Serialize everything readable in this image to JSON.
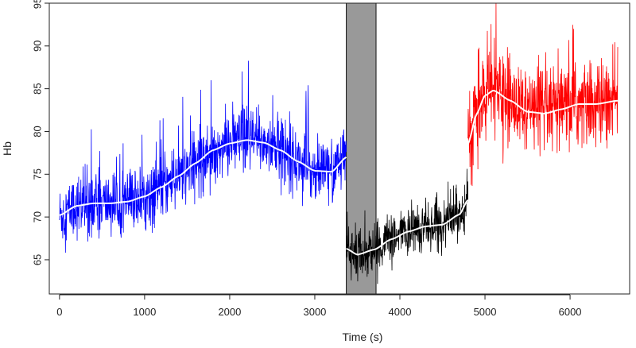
{
  "chart_data": {
    "type": "line",
    "title": "",
    "xlabel": "Time (s)",
    "ylabel": "Hb",
    "xlim": [
      -120,
      6700
    ],
    "ylim": [
      61,
      95
    ],
    "xticks": [
      0,
      1000,
      2000,
      3000,
      4000,
      5000,
      6000
    ],
    "yticks": [
      65,
      70,
      75,
      80,
      85,
      90,
      95
    ],
    "grid": false,
    "shaded_region": {
      "x": [
        3370,
        3720
      ],
      "color": "#999999"
    },
    "series": [
      {
        "color": "#0000ff",
        "x_range": [
          0,
          3370
        ],
        "trend": {
          "x": [
            0,
            200,
            400,
            600,
            800,
            1000,
            1200,
            1400,
            1600,
            1800,
            2000,
            2200,
            2400,
            2600,
            2800,
            3000,
            3200,
            3370
          ],
          "y": [
            70.2,
            71.3,
            71.6,
            71.6,
            71.8,
            72.4,
            73.5,
            74.8,
            76.3,
            77.8,
            78.6,
            79.0,
            78.7,
            77.8,
            76.5,
            75.4,
            75.3,
            77.0
          ]
        },
        "noise": {
          "base": 1.8,
          "spike": 6.0
        }
      },
      {
        "color": "#000000",
        "x_range": [
          3370,
          4800
        ],
        "trend": {
          "x": [
            3370,
            3500,
            3700,
            3900,
            4100,
            4300,
            4500,
            4700,
            4800
          ],
          "y": [
            66.3,
            65.6,
            66.2,
            67.4,
            68.3,
            68.9,
            69.1,
            70.3,
            72.0
          ]
        },
        "noise": {
          "base": 1.4,
          "spike": 3.0
        }
      },
      {
        "color": "#ff0000",
        "x_range": [
          4800,
          6560
        ],
        "trend": {
          "x": [
            4800,
            4900,
            5000,
            5100,
            5300,
            5500,
            5700,
            5900,
            6100,
            6300,
            6560
          ],
          "y": [
            78.5,
            82.0,
            84.2,
            84.8,
            83.6,
            82.3,
            82.1,
            82.6,
            83.2,
            83.2,
            83.6
          ]
        },
        "noise": {
          "base": 2.5,
          "spike": 6.0
        }
      }
    ],
    "trend_color": "#ffffff"
  }
}
